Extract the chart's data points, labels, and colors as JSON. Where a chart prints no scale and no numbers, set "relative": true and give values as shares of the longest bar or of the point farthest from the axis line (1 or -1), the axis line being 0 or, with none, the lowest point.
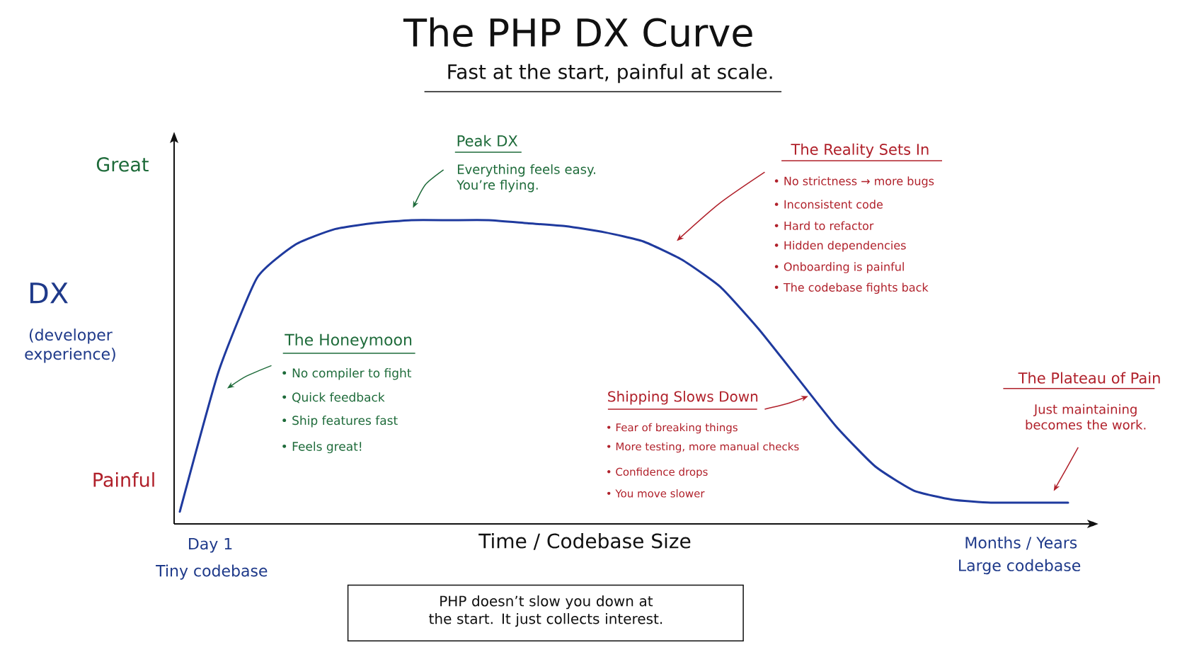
{
  "chart_data": {
    "type": "line",
    "title": "The PHP DX Curve",
    "subtitle": "Fast at the start, painful at scale.",
    "xlabel": "Time / Codebase Size",
    "ylabel": "DX",
    "relative": true,
    "categories": [
      null,
      null,
      null,
      null,
      null,
      null,
      null,
      null,
      null,
      null,
      null,
      null,
      null,
      null,
      null,
      null,
      null,
      null,
      null,
      null,
      null,
      null,
      null,
      null
    ],
    "series": [
      {
        "color": "#1f3a9e",
        "values": [
          0.04,
          0.5,
          0.81,
          0.92,
          0.97,
          0.99,
          1.0,
          1.0,
          1.0,
          0.99,
          0.98,
          0.96,
          0.93,
          0.87,
          0.78,
          0.64,
          0.48,
          0.32,
          0.19,
          0.11,
          0.08,
          0.07,
          0.07,
          0.07
        ]
      }
    ],
    "annotations": [
      "(developer experience)",
      "Great",
      "Painful",
      "Day 1",
      "Tiny codebase",
      "Months / Years",
      "Large codebase",
      "Peak DX",
      "Everything feels easy. You’re flying.",
      "The Honeymoon",
      "• No compiler to fight",
      "• Quick feedback",
      "• Ship features fast",
      "• Feels great!",
      "The Reality Sets In",
      "• No strictness → more bugs",
      "• Inconsistent code",
      "• Hard to refactor",
      "• Hidden dependencies",
      "• Onboarding is painful",
      "• The codebase fights back",
      "Shipping Slows Down",
      "• Fear of breaking things",
      "• More testing, more manual checks",
      "• Confidence drops",
      "• You move slower",
      "The Plateau of Pain",
      "Just maintaining becomes the work.",
      "PHP doesn’t slow you down at the start. It just collects interest."
    ]
  }
}
